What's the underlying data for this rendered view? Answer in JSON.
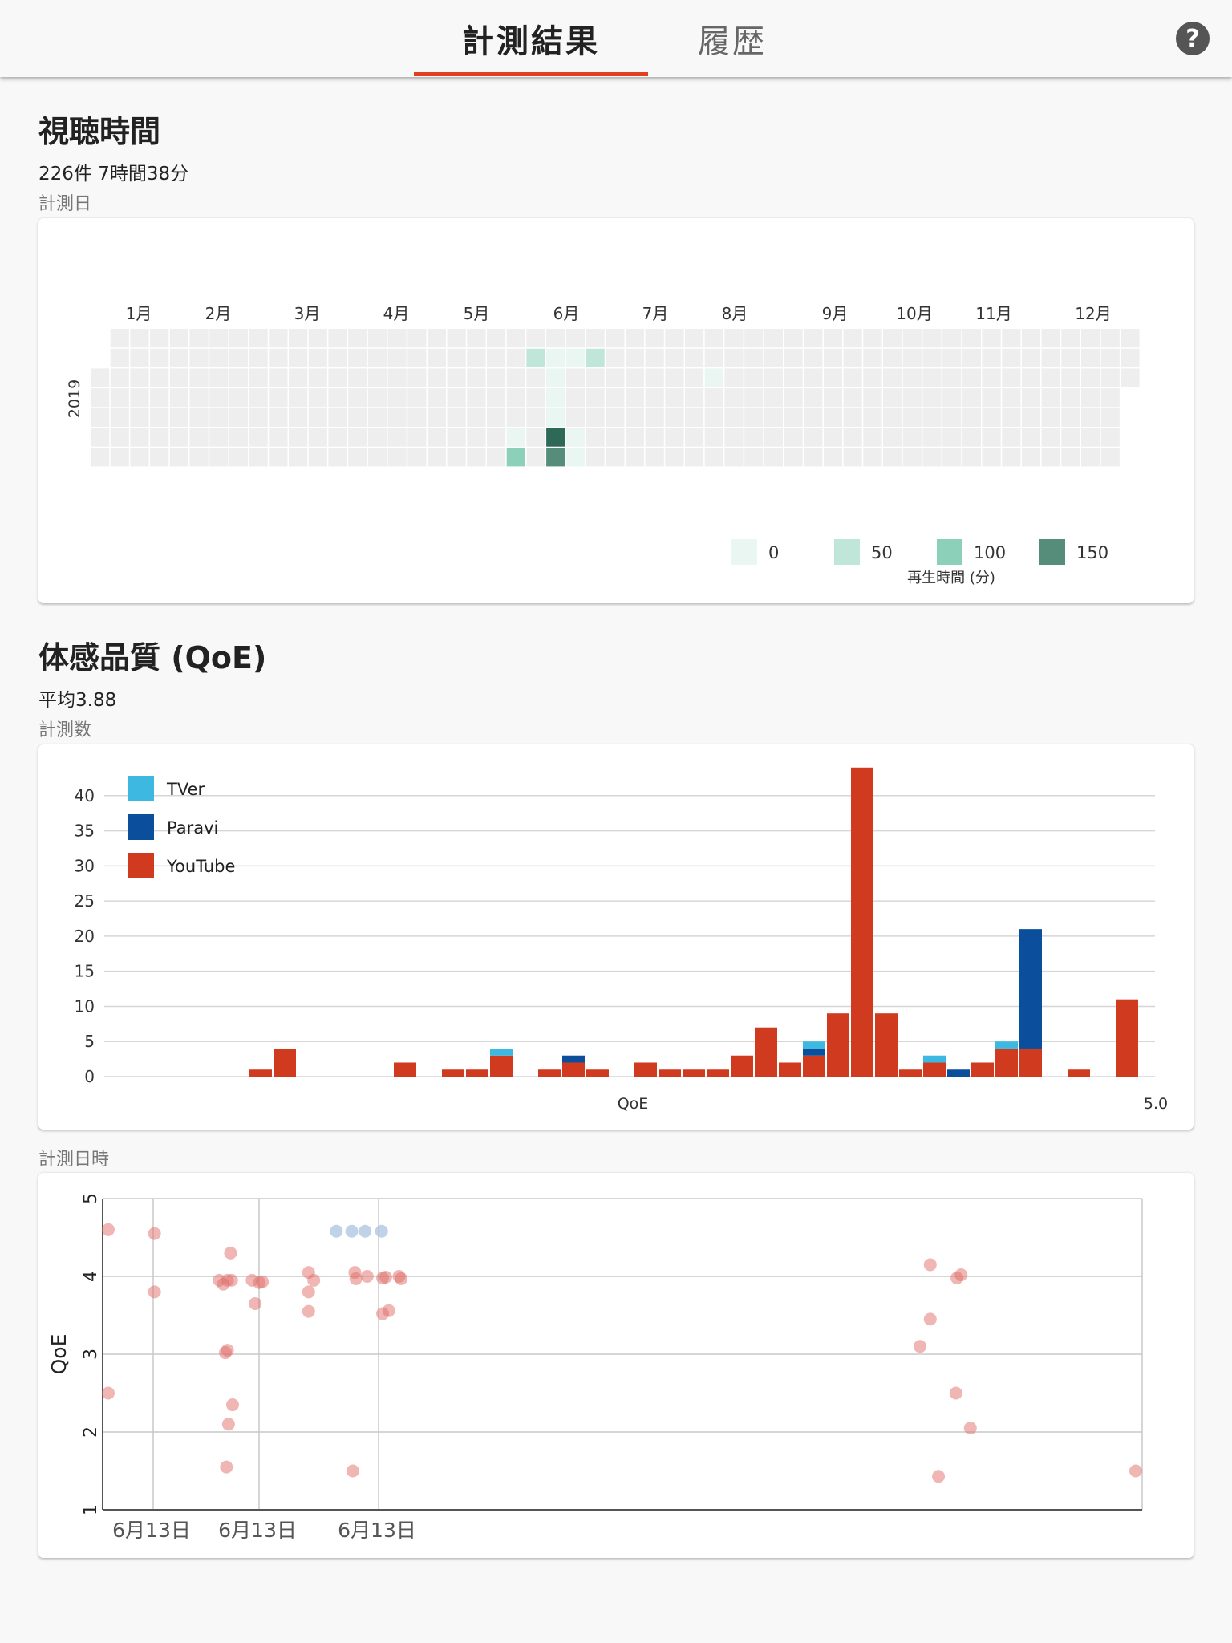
{
  "tabs": [
    {
      "label": "計測結果",
      "active": true
    },
    {
      "label": "履歴",
      "active": false
    }
  ],
  "help_icon": "question-circle-icon",
  "help_label": "?",
  "viewing": {
    "title": "視聴時間",
    "summary": "226件 7時間38分",
    "caption": "計測日",
    "year": "2019",
    "months": [
      "1月",
      "2月",
      "3月",
      "4月",
      "5月",
      "6月",
      "7月",
      "8月",
      "9月",
      "10月",
      "11月",
      "12月"
    ],
    "legend": {
      "values": [
        "0",
        "50",
        "100",
        "150"
      ],
      "colors": [
        "#e9f6f1",
        "#bfe6d8",
        "#8dd0b9",
        "#568d7a"
      ],
      "unit_label": "再生時間 (分)"
    },
    "heatmap_colors": {
      "empty": "#eeeeee",
      "dark": "#2e6957"
    },
    "heatmap_cells": [
      {
        "week": 22,
        "day": 1,
        "minutes": 50
      },
      {
        "week": 23,
        "day": 1,
        "minutes": 20
      },
      {
        "week": 24,
        "day": 1,
        "minutes": 10
      },
      {
        "week": 25,
        "day": 1,
        "minutes": 50
      },
      {
        "week": 23,
        "day": 2,
        "minutes": 10
      },
      {
        "week": 31,
        "day": 2,
        "minutes": 10
      },
      {
        "week": 23,
        "day": 3,
        "minutes": 15
      },
      {
        "week": 23,
        "day": 4,
        "minutes": 10
      },
      {
        "week": 23,
        "day": 5,
        "minutes": 170
      },
      {
        "week": 21,
        "day": 5,
        "minutes": 10
      },
      {
        "week": 24,
        "day": 5,
        "minutes": 10
      },
      {
        "week": 21,
        "day": 6,
        "minutes": 100
      },
      {
        "week": 23,
        "day": 6,
        "minutes": 150
      },
      {
        "week": 24,
        "day": 6,
        "minutes": 10
      }
    ]
  },
  "qoe": {
    "title": "体感品質 (QoE)",
    "summary": "平均3.88",
    "caption": "計測数",
    "chart_data": {
      "type": "bar",
      "stacked": true,
      "xlabel": "QoE",
      "x_max_label": "5.0",
      "ylim": [
        0,
        45
      ],
      "yticks": [
        0,
        5,
        10,
        15,
        20,
        25,
        30,
        35,
        40
      ],
      "grid": true,
      "legend_position": "top-left",
      "bin_count": 44,
      "series": [
        {
          "name": "TVer",
          "color": "#3db9e1",
          "values": [
            0,
            0,
            0,
            0,
            0,
            0,
            0,
            0,
            0,
            0,
            0,
            0,
            0,
            0,
            0,
            0,
            1,
            0,
            0,
            0,
            0,
            0,
            0,
            0,
            0,
            0,
            0,
            0,
            0,
            1,
            0,
            0,
            0,
            0,
            1,
            0,
            0,
            1,
            0,
            0,
            0,
            0,
            0,
            0
          ]
        },
        {
          "name": "Paravi",
          "color": "#0b4f9c",
          "values": [
            0,
            0,
            0,
            0,
            0,
            0,
            0,
            0,
            0,
            0,
            0,
            0,
            0,
            0,
            0,
            0,
            0,
            0,
            0,
            1,
            0,
            0,
            0,
            0,
            0,
            0,
            0,
            0,
            0,
            1,
            0,
            0,
            0,
            0,
            0,
            1,
            0,
            0,
            17,
            0,
            0,
            0,
            0,
            0
          ]
        },
        {
          "name": "YouTube",
          "color": "#d03a1f",
          "values": [
            0,
            0,
            0,
            0,
            0,
            0,
            1,
            4,
            0,
            0,
            0,
            0,
            2,
            0,
            1,
            1,
            3,
            0,
            1,
            2,
            1,
            0,
            2,
            1,
            1,
            1,
            3,
            7,
            2,
            3,
            9,
            44,
            9,
            1,
            2,
            0,
            2,
            4,
            4,
            0,
            1,
            0,
            11,
            0
          ]
        }
      ]
    },
    "scatter_caption": "計測日時",
    "scatter_data": {
      "type": "scatter",
      "ylabel": "QoE",
      "ylim": [
        1,
        5
      ],
      "yticks": [
        1,
        2,
        3,
        4,
        5
      ],
      "x_tick_labels": [
        "6月13日",
        "6月13日",
        "6月13日"
      ],
      "points_red": [
        [
          0.0,
          4.6
        ],
        [
          0.0,
          2.5
        ],
        [
          0.045,
          4.55
        ],
        [
          0.045,
          3.8
        ],
        [
          0.108,
          3.95
        ],
        [
          0.112,
          3.9
        ],
        [
          0.116,
          3.95
        ],
        [
          0.12,
          3.95
        ],
        [
          0.116,
          3.05
        ],
        [
          0.114,
          3.02
        ],
        [
          0.119,
          4.3
        ],
        [
          0.121,
          2.35
        ],
        [
          0.117,
          2.1
        ],
        [
          0.115,
          1.55
        ],
        [
          0.14,
          3.95
        ],
        [
          0.143,
          3.65
        ],
        [
          0.147,
          3.92
        ],
        [
          0.15,
          3.93
        ],
        [
          0.195,
          4.05
        ],
        [
          0.195,
          3.8
        ],
        [
          0.195,
          3.55
        ],
        [
          0.2,
          3.95
        ],
        [
          0.24,
          4.05
        ],
        [
          0.241,
          3.97
        ],
        [
          0.252,
          4.0
        ],
        [
          0.267,
          3.98
        ],
        [
          0.27,
          3.99
        ],
        [
          0.267,
          3.52
        ],
        [
          0.273,
          3.56
        ],
        [
          0.285,
          3.97
        ],
        [
          0.283,
          4.0
        ],
        [
          0.238,
          1.5
        ],
        [
          0.8,
          4.15
        ],
        [
          0.8,
          3.45
        ],
        [
          0.79,
          3.1
        ],
        [
          0.808,
          1.43
        ],
        [
          0.825,
          2.5
        ],
        [
          0.826,
          3.98
        ],
        [
          0.83,
          4.02
        ],
        [
          0.839,
          2.05
        ],
        [
          1.0,
          1.5
        ]
      ],
      "points_blue": [
        [
          0.222,
          4.58
        ],
        [
          0.237,
          4.58
        ],
        [
          0.25,
          4.58
        ],
        [
          0.266,
          4.58
        ]
      ],
      "colors": {
        "red": "#e06d6a",
        "blue": "#a9c3e0"
      }
    }
  }
}
